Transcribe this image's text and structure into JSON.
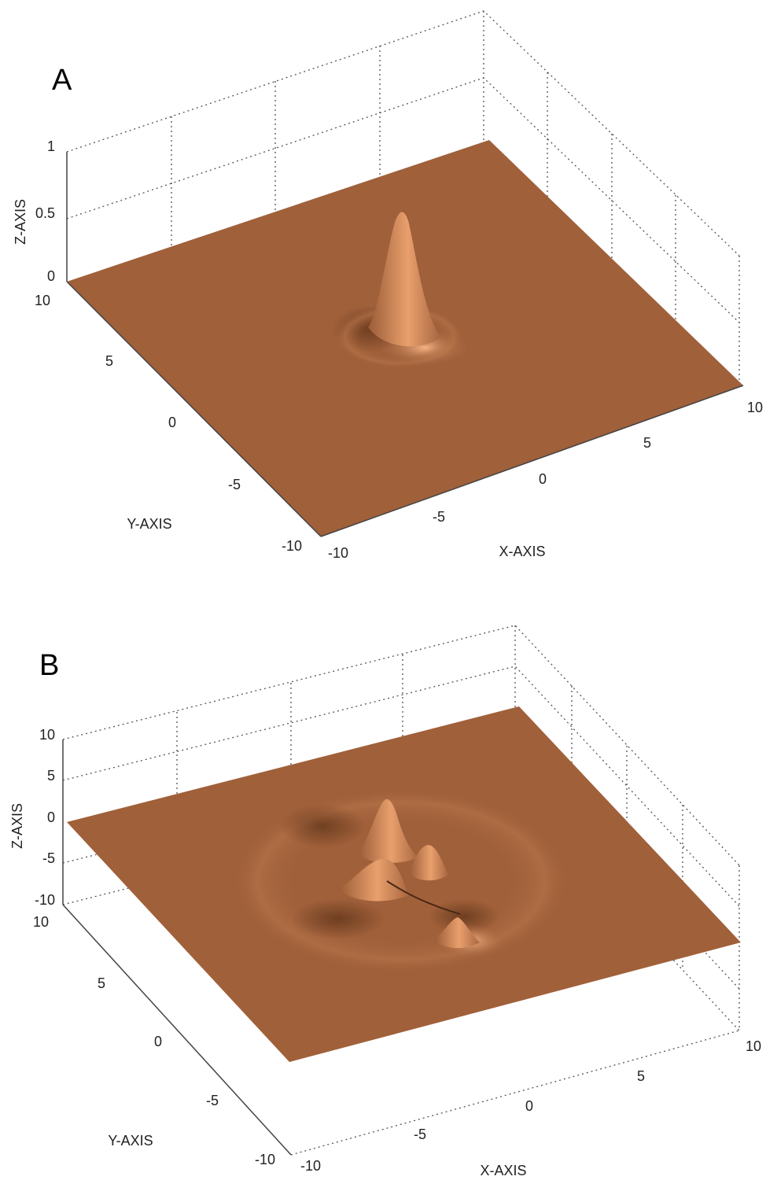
{
  "chart_data": [
    {
      "type": "surface",
      "panel_label": "A",
      "xlabel": "X-AXIS",
      "ylabel": "Y-AXIS",
      "zlabel": "Z-AXIS",
      "xlim": [
        -10,
        10
      ],
      "ylim": [
        -10,
        10
      ],
      "zlim": [
        0,
        1
      ],
      "x_ticks": [
        "-10",
        "-5",
        "0",
        "5",
        "10"
      ],
      "y_ticks": [
        "-10",
        "-5",
        "0",
        "5",
        "10"
      ],
      "z_ticks": [
        "0",
        "0.5",
        "1"
      ],
      "grid": true,
      "surface_color": "#a0603a",
      "features": [
        {
          "kind": "peak",
          "x": 0,
          "y": 0,
          "z": 0.95
        }
      ]
    },
    {
      "type": "surface",
      "panel_label": "B",
      "xlabel": "X-AXIS",
      "ylabel": "Y-AXIS",
      "zlabel": "Z-AXIS",
      "xlim": [
        -10,
        10
      ],
      "ylim": [
        -10,
        10
      ],
      "zlim": [
        -10,
        10
      ],
      "x_ticks": [
        "-10",
        "-5",
        "0",
        "5",
        "10"
      ],
      "y_ticks": [
        "-10",
        "-5",
        "0",
        "5",
        "10"
      ],
      "z_ticks": [
        "-10",
        "-5",
        "0",
        "5",
        "10"
      ],
      "grid": true,
      "surface_color": "#a0603a",
      "features": [
        {
          "kind": "peak",
          "x": -1,
          "y": 1,
          "z": 8
        },
        {
          "kind": "peak",
          "x": 1,
          "y": 1,
          "z": 4
        },
        {
          "kind": "peak",
          "x": -1,
          "y": -1,
          "z": 3
        },
        {
          "kind": "peak",
          "x": 1,
          "y": -2,
          "z": 4
        }
      ]
    }
  ]
}
